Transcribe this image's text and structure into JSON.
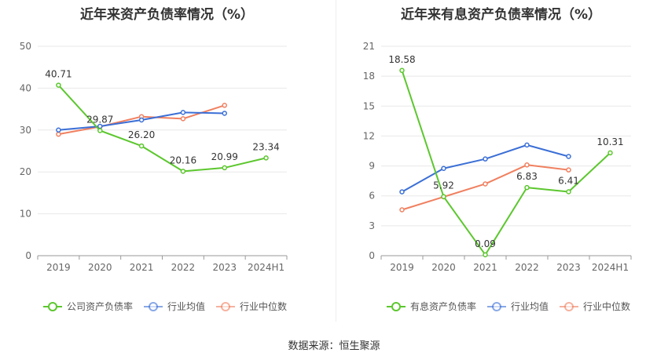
{
  "source_label": "数据来源：恒生聚源",
  "chart_data": [
    {
      "type": "line",
      "title": "近年来资产负债率情况（%）",
      "x": [
        "2019",
        "2020",
        "2021",
        "2022",
        "2023",
        "2024H1"
      ],
      "ylim": [
        0,
        50
      ],
      "yticks": [
        0,
        10,
        20,
        30,
        40,
        50
      ],
      "grid": true,
      "legend_position": "bottom",
      "series": [
        {
          "name": "公司资产负债率",
          "color": "#5cc72e",
          "values": [
            40.71,
            29.87,
            26.2,
            20.16,
            20.99,
            23.34
          ],
          "labels": [
            "40.71",
            "29.87",
            "26.20",
            "20.16",
            "20.99",
            "23.34"
          ]
        },
        {
          "name": "行业均值",
          "color": "#3b6fd6",
          "values": [
            30.0,
            30.9,
            32.4,
            34.2,
            34.0,
            null
          ]
        },
        {
          "name": "行业中位数",
          "color": "#f08060",
          "values": [
            29.0,
            30.8,
            33.2,
            32.7,
            35.9,
            null
          ]
        }
      ]
    },
    {
      "type": "line",
      "title": "近年来有息资产负债率情况（%）",
      "x": [
        "2019",
        "2020",
        "2021",
        "2022",
        "2023",
        "2024H1"
      ],
      "ylim": [
        0,
        21
      ],
      "yticks": [
        0,
        3,
        6,
        9,
        12,
        15,
        18,
        21
      ],
      "grid": true,
      "legend_position": "bottom",
      "series": [
        {
          "name": "有息资产负债率",
          "color": "#5cc72e",
          "values": [
            18.58,
            5.92,
            0.09,
            6.83,
            6.41,
            10.31
          ],
          "labels": [
            "18.58",
            "5.92",
            "0.09",
            "6.83",
            "6.41",
            "10.31"
          ]
        },
        {
          "name": "行业均值",
          "color": "#3b6fd6",
          "values": [
            6.4,
            8.75,
            9.7,
            11.1,
            9.95,
            null
          ]
        },
        {
          "name": "行业中位数",
          "color": "#f08060",
          "values": [
            4.6,
            5.9,
            7.2,
            9.1,
            8.6,
            null
          ]
        }
      ]
    }
  ]
}
